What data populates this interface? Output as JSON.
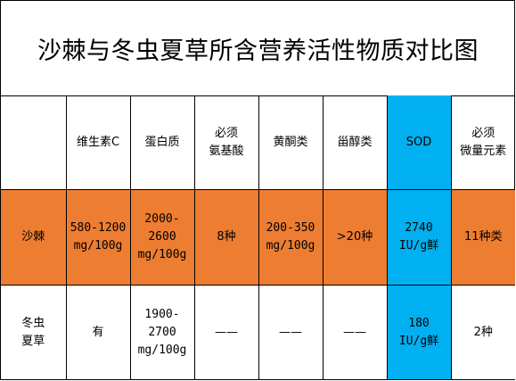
{
  "title": "沙棘与冬虫夏草所含营养活性物质对比图",
  "columns": [
    "",
    "维生素C",
    "蛋白质",
    "必须\n氨基酸",
    "黄酮类",
    "甾醇类",
    "SOD",
    "必须\n微量元素"
  ],
  "rows": [
    {
      "name": "沙棘",
      "cells": [
        "580-1200\nmg/100g",
        "2000-\n2600\nmg/100g",
        "8种",
        "200-350\nmg/100g",
        ">20种",
        "2740\nIU/g鲜",
        "11种类"
      ]
    },
    {
      "name": "冬虫\n夏草",
      "cells": [
        "有",
        "1900-\n2700\nmg/100g",
        "——",
        "——",
        "——",
        "180\nIU/g鲜",
        "2种"
      ]
    }
  ],
  "colors": {
    "sea_buckthorn_row": "#ED7D31",
    "sod_column": "#00B0F0",
    "border": "#000000"
  }
}
